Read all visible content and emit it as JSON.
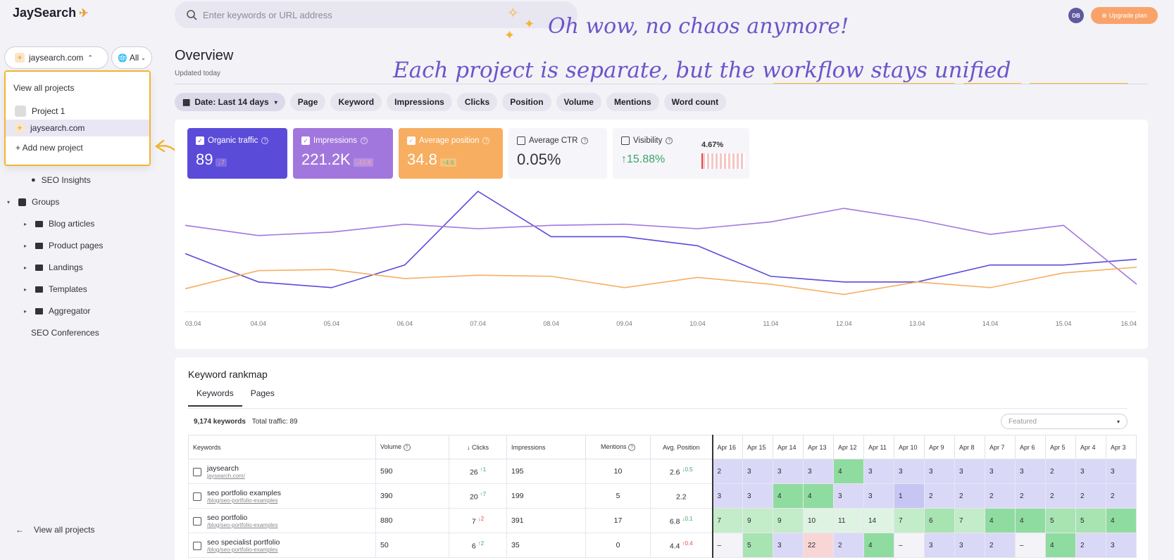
{
  "app": {
    "name": "JaySearch"
  },
  "search": {
    "placeholder": "Enter keywords or URL address"
  },
  "user": {
    "initials": "DB",
    "upgrade_label": "Upgrade plan"
  },
  "project_selector": {
    "current": "jaysearch.com",
    "scope": "All"
  },
  "project_dropdown": {
    "heading": "View all projects",
    "items": [
      "Project 1",
      "jaysearch.com"
    ],
    "selected": "jaysearch.com",
    "add_label": "+ Add new project"
  },
  "sidebar": {
    "seo_insights": "SEO Insights",
    "groups": "Groups",
    "folders": [
      "Blog articles",
      "Product pages",
      "Landings",
      "Templates",
      "Aggregator"
    ],
    "seo_conferences": "SEO Conferences",
    "view_all": "View all projects"
  },
  "overview": {
    "title": "Overview",
    "updated": "Updated today"
  },
  "annotations": {
    "line1": "Oh wow, no chaos anymore!",
    "line2": "Each project is separate, but the workflow stays unified",
    "accent": "#f2b531"
  },
  "filters": {
    "date": "Date: Last 14 days",
    "chips": [
      "Page",
      "Keyword",
      "Impressions",
      "Clicks",
      "Position",
      "Volume",
      "Mentions",
      "Word count"
    ]
  },
  "metrics": [
    {
      "label": "Organic traffic",
      "value": "89",
      "delta": "↓7",
      "checked": true,
      "color": "#5b4bd9"
    },
    {
      "label": "Impressions",
      "value": "221.2K",
      "delta": "↓43.8",
      "checked": true,
      "color": "#a277dd"
    },
    {
      "label": "Average position",
      "value": "34.8",
      "delta": "↑4.6",
      "checked": true,
      "color": "#f7ae61"
    },
    {
      "label": "Average CTR",
      "value": "0.05%",
      "checked": false
    },
    {
      "label": "Visibility",
      "value": "↑15.88%",
      "extra": "4.67%",
      "checked": false
    }
  ],
  "chart_data": {
    "type": "line",
    "x": [
      "03.04",
      "04.04",
      "05.04",
      "06.04",
      "07.04",
      "08.04",
      "09.04",
      "10.04",
      "11.04",
      "12.04",
      "13.04",
      "14.04",
      "15.04",
      "16.04"
    ],
    "series": [
      {
        "color": "#5b4bd9",
        "values": [
          45,
          20,
          15,
          35,
          100,
          60,
          60,
          52,
          25,
          20,
          20,
          35,
          35,
          40
        ]
      },
      {
        "color": "#a277dd",
        "values": [
          70,
          61,
          64,
          71,
          67,
          70,
          71,
          67,
          73,
          85,
          75,
          62,
          70,
          18
        ]
      },
      {
        "color": "#f7ae61",
        "values": [
          14,
          30,
          31,
          23,
          26,
          25,
          15,
          24,
          18,
          9,
          20,
          15,
          28,
          33
        ]
      }
    ],
    "grid": false
  },
  "rankmap": {
    "title": "Keyword rankmap",
    "tabs": [
      "Keywords",
      "Pages"
    ],
    "keywords_count": "9,174 keywords",
    "total_traffic": "Total traffic: 89",
    "sort_placeholder": "Featured",
    "columns": [
      "Keywords",
      "Volume",
      "↓ Clicks",
      "Impressions",
      "Mentions",
      "Avg. Position"
    ],
    "date_columns": [
      "Apr 16",
      "Apr 15",
      "Apr 14",
      "Apr 13",
      "Apr 12",
      "Apr 11",
      "Apr 10",
      "Apr 9",
      "Apr 8",
      "Apr 7",
      "Apr 6",
      "Apr 5",
      "Apr 4",
      "Apr 3"
    ],
    "rows": [
      {
        "keyword": "jaysearch",
        "url": "jaysearch.com/",
        "volume": "590",
        "clicks": "26",
        "clicks_delta": "↑1",
        "clicks_dir": "up",
        "impressions": "195",
        "mentions": "10",
        "avg": "2.6",
        "avg_delta": "↓0.5",
        "avg_dir": "up",
        "cells": [
          "2",
          "3",
          "3",
          "3",
          "4",
          "3",
          "3",
          "3",
          "3",
          "3",
          "3",
          "2",
          "3",
          "3"
        ]
      },
      {
        "keyword": "seo portfolio examples",
        "url": "/blog/seo-portfolio-examples",
        "volume": "390",
        "clicks": "20",
        "clicks_delta": "↑7",
        "clicks_dir": "up",
        "impressions": "199",
        "mentions": "5",
        "avg": "2.2",
        "avg_delta": "",
        "avg_dir": "up",
        "cells": [
          "3",
          "3",
          "4",
          "4",
          "3",
          "3",
          "1",
          "2",
          "2",
          "2",
          "2",
          "2",
          "2",
          "2"
        ]
      },
      {
        "keyword": "seo portfolio",
        "url": "/blog/seo-portfolio-examples",
        "volume": "880",
        "clicks": "7",
        "clicks_delta": "↓2",
        "clicks_dir": "dn",
        "impressions": "391",
        "mentions": "17",
        "avg": "6.8",
        "avg_delta": "↓0.1",
        "avg_dir": "up",
        "cells": [
          "7",
          "9",
          "9",
          "10",
          "11",
          "14",
          "7",
          "6",
          "7",
          "4",
          "4",
          "5",
          "5",
          "4"
        ]
      },
      {
        "keyword": "seo specialist portfolio",
        "url": "/blog/seo-portfolio-examples",
        "volume": "50",
        "clicks": "6",
        "clicks_delta": "↑2",
        "clicks_dir": "up",
        "impressions": "35",
        "mentions": "0",
        "avg": "4.4",
        "avg_delta": "↑0.4",
        "avg_dir": "dn",
        "cells": [
          "–",
          "5",
          "3",
          "22",
          "2",
          "4",
          "–",
          "3",
          "3",
          "2",
          "–",
          "4",
          "2",
          "3"
        ]
      }
    ]
  }
}
